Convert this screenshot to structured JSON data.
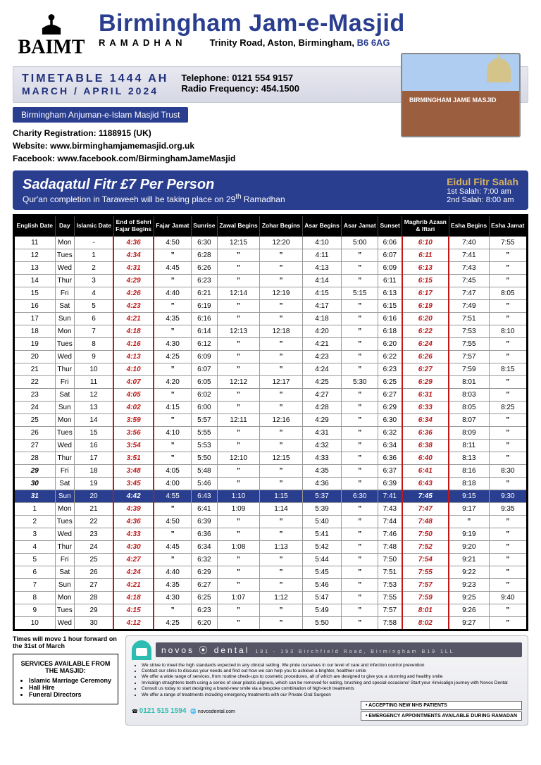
{
  "header": {
    "logo_text": "BAIMT",
    "title": "Birmingham Jam-e-Masjid",
    "subtitle": "RAMADHAN",
    "address_prefix": "Trinity Road, Aston, Birmingham, ",
    "postcode": "B6 6AG"
  },
  "info_bar": {
    "timetable": "TIMETABLE 1444 AH",
    "period": "MARCH / APRIL 2024",
    "tel_label": "Telephone: ",
    "tel": "0121 554 9157",
    "radio_label": "Radio Frequency: ",
    "radio": "454.1500",
    "photo_caption": "BIRMINGHAM JAME MASJID"
  },
  "trust": "Birmingham Anjuman-e-Islam Masjid Trust",
  "meta": {
    "charity": "Charity Registration: 1188915 (UK)",
    "website": "Website: www.birminghamjamemasjid.org.uk",
    "facebook": "Facebook: www.facebook.com/BirminghamJameMasjid"
  },
  "fitr": {
    "title": "Sadaqatul Fitr £7 Per Person",
    "note_a": "Qur'an completion in Taraweeh will be taking place on 29",
    "note_sup": "th",
    "note_b": " Ramadhan",
    "eid_label": "Eidul Fitr Salah",
    "eid1": "1st Salah: 7:00 am",
    "eid2": "2nd Salah: 8:00 am"
  },
  "columns": [
    "English Date",
    "Day",
    "Islamic Date",
    "End of Sehri / Fajar Begins",
    "Fajar Jamat",
    "Sunrise",
    "Zawal Begins",
    "Zohar Begins",
    "Asar Begins",
    "Asar Jamat",
    "Sunset",
    "Maghrib Azaan & Iftari",
    "Esha Begins",
    "Esha Jamat"
  ],
  "ditto": "”",
  "rows": [
    {
      "e": "11",
      "d": "Mon",
      "i": "-",
      "sehri": "4:36",
      "fj": "4:50",
      "sr": "6:30",
      "zw": "12:15",
      "zo": "12:20",
      "ab": "4:10",
      "aj": "5:00",
      "ss": "6:06",
      "mg": "6:10",
      "eb": "7:40",
      "ej": "7:55"
    },
    {
      "e": "12",
      "d": "Tues",
      "i": "1",
      "sehri": "4:34",
      "fj": "”",
      "sr": "6:28",
      "zw": "”",
      "zo": "”",
      "ab": "4:11",
      "aj": "”",
      "ss": "6:07",
      "mg": "6:11",
      "eb": "7:41",
      "ej": "”"
    },
    {
      "e": "13",
      "d": "Wed",
      "i": "2",
      "sehri": "4:31",
      "fj": "4:45",
      "sr": "6:26",
      "zw": "”",
      "zo": "”",
      "ab": "4:13",
      "aj": "”",
      "ss": "6:09",
      "mg": "6:13",
      "eb": "7:43",
      "ej": "”"
    },
    {
      "e": "14",
      "d": "Thur",
      "i": "3",
      "sehri": "4:29",
      "fj": "”",
      "sr": "6:23",
      "zw": "”",
      "zo": "”",
      "ab": "4:14",
      "aj": "”",
      "ss": "6:11",
      "mg": "6:15",
      "eb": "7:45",
      "ej": "”"
    },
    {
      "e": "15",
      "d": "Fri",
      "i": "4",
      "sehri": "4:26",
      "fj": "4:40",
      "sr": "6:21",
      "zw": "12:14",
      "zo": "12:19",
      "ab": "4:15",
      "aj": "5:15",
      "ss": "6:13",
      "mg": "6:17",
      "eb": "7:47",
      "ej": "8:05"
    },
    {
      "e": "16",
      "d": "Sat",
      "i": "5",
      "sehri": "4:23",
      "fj": "”",
      "sr": "6:19",
      "zw": "”",
      "zo": "”",
      "ab": "4:17",
      "aj": "”",
      "ss": "6:15",
      "mg": "6:19",
      "eb": "7:49",
      "ej": "”"
    },
    {
      "e": "17",
      "d": "Sun",
      "i": "6",
      "sehri": "4:21",
      "fj": "4:35",
      "sr": "6:16",
      "zw": "”",
      "zo": "”",
      "ab": "4:18",
      "aj": "”",
      "ss": "6:16",
      "mg": "6:20",
      "eb": "7:51",
      "ej": "”"
    },
    {
      "e": "18",
      "d": "Mon",
      "i": "7",
      "sehri": "4:18",
      "fj": "”",
      "sr": "6:14",
      "zw": "12:13",
      "zo": "12:18",
      "ab": "4:20",
      "aj": "”",
      "ss": "6:18",
      "mg": "6:22",
      "eb": "7:53",
      "ej": "8:10"
    },
    {
      "e": "19",
      "d": "Tues",
      "i": "8",
      "sehri": "4:16",
      "fj": "4:30",
      "sr": "6:12",
      "zw": "”",
      "zo": "”",
      "ab": "4:21",
      "aj": "”",
      "ss": "6:20",
      "mg": "6:24",
      "eb": "7:55",
      "ej": "”"
    },
    {
      "e": "20",
      "d": "Wed",
      "i": "9",
      "sehri": "4:13",
      "fj": "4:25",
      "sr": "6:09",
      "zw": "”",
      "zo": "”",
      "ab": "4:23",
      "aj": "”",
      "ss": "6:22",
      "mg": "6:26",
      "eb": "7:57",
      "ej": "”"
    },
    {
      "e": "21",
      "d": "Thur",
      "i": "10",
      "sehri": "4:10",
      "fj": "”",
      "sr": "6:07",
      "zw": "”",
      "zo": "”",
      "ab": "4:24",
      "aj": "”",
      "ss": "6:23",
      "mg": "6:27",
      "eb": "7:59",
      "ej": "8:15"
    },
    {
      "e": "22",
      "d": "Fri",
      "i": "11",
      "sehri": "4:07",
      "fj": "4:20",
      "sr": "6:05",
      "zw": "12:12",
      "zo": "12:17",
      "ab": "4:25",
      "aj": "5:30",
      "ss": "6:25",
      "mg": "6:29",
      "eb": "8:01",
      "ej": "”"
    },
    {
      "e": "23",
      "d": "Sat",
      "i": "12",
      "sehri": "4:05",
      "fj": "”",
      "sr": "6:02",
      "zw": "”",
      "zo": "”",
      "ab": "4:27",
      "aj": "”",
      "ss": "6:27",
      "mg": "6:31",
      "eb": "8:03",
      "ej": "”"
    },
    {
      "e": "24",
      "d": "Sun",
      "i": "13",
      "sehri": "4:02",
      "fj": "4:15",
      "sr": "6:00",
      "zw": "”",
      "zo": "”",
      "ab": "4:28",
      "aj": "”",
      "ss": "6:29",
      "mg": "6:33",
      "eb": "8:05",
      "ej": "8:25"
    },
    {
      "e": "25",
      "d": "Mon",
      "i": "14",
      "sehri": "3:59",
      "fj": "”",
      "sr": "5:57",
      "zw": "12:11",
      "zo": "12:16",
      "ab": "4:29",
      "aj": "”",
      "ss": "6:30",
      "mg": "6:34",
      "eb": "8:07",
      "ej": "”"
    },
    {
      "e": "26",
      "d": "Tues",
      "i": "15",
      "sehri": "3:56",
      "fj": "4:10",
      "sr": "5:55",
      "zw": "”",
      "zo": "”",
      "ab": "4:31",
      "aj": "”",
      "ss": "6:32",
      "mg": "6:36",
      "eb": "8:09",
      "ej": "”"
    },
    {
      "e": "27",
      "d": "Wed",
      "i": "16",
      "sehri": "3:54",
      "fj": "”",
      "sr": "5:53",
      "zw": "”",
      "zo": "”",
      "ab": "4:32",
      "aj": "”",
      "ss": "6:34",
      "mg": "6:38",
      "eb": "8:11",
      "ej": "”"
    },
    {
      "e": "28",
      "d": "Thur",
      "i": "17",
      "sehri": "3:51",
      "fj": "”",
      "sr": "5:50",
      "zw": "12:10",
      "zo": "12:15",
      "ab": "4:33",
      "aj": "”",
      "ss": "6:36",
      "mg": "6:40",
      "eb": "8:13",
      "ej": "”"
    },
    {
      "e": "29",
      "d": "Fri",
      "i": "18",
      "sehri": "3:48",
      "fj": "4:05",
      "sr": "5:48",
      "zw": "”",
      "zo": "”",
      "ab": "4:35",
      "aj": "”",
      "ss": "6:37",
      "mg": "6:41",
      "eb": "8:16",
      "ej": "8:30"
    },
    {
      "e": "30",
      "d": "Sat",
      "i": "19",
      "sehri": "3:45",
      "fj": "4:00",
      "sr": "5:46",
      "zw": "”",
      "zo": "”",
      "ab": "4:36",
      "aj": "”",
      "ss": "6:39",
      "mg": "6:43",
      "eb": "8:18",
      "ej": "”"
    },
    {
      "e": "31",
      "d": "Sun",
      "i": "20",
      "sehri": "4:42",
      "fj": "4:55",
      "sr": "6:43",
      "zw": "1:10",
      "zo": "1:15",
      "ab": "5:37",
      "aj": "6:30",
      "ss": "7:41",
      "mg": "7:45",
      "eb": "9:15",
      "ej": "9:30",
      "hl": true
    },
    {
      "e": "1",
      "d": "Mon",
      "i": "21",
      "sehri": "4:39",
      "fj": "”",
      "sr": "6:41",
      "zw": "1:09",
      "zo": "1:14",
      "ab": "5:39",
      "aj": "”",
      "ss": "7:43",
      "mg": "7:47",
      "eb": "9:17",
      "ej": "9:35"
    },
    {
      "e": "2",
      "d": "Tues",
      "i": "22",
      "sehri": "4:36",
      "fj": "4:50",
      "sr": "6:39",
      "zw": "”",
      "zo": "”",
      "ab": "5:40",
      "aj": "”",
      "ss": "7:44",
      "mg": "7:48",
      "eb": "”",
      "ej": "”"
    },
    {
      "e": "3",
      "d": "Wed",
      "i": "23",
      "sehri": "4:33",
      "fj": "”",
      "sr": "6:36",
      "zw": "”",
      "zo": "”",
      "ab": "5:41",
      "aj": "”",
      "ss": "7:46",
      "mg": "7:50",
      "eb": "9:19",
      "ej": "”"
    },
    {
      "e": "4",
      "d": "Thur",
      "i": "24",
      "sehri": "4:30",
      "fj": "4:45",
      "sr": "6:34",
      "zw": "1:08",
      "zo": "1:13",
      "ab": "5:42",
      "aj": "”",
      "ss": "7:48",
      "mg": "7:52",
      "eb": "9:20",
      "ej": "”"
    },
    {
      "e": "5",
      "d": "Fri",
      "i": "25",
      "sehri": "4:27",
      "fj": "”",
      "sr": "6:32",
      "zw": "”",
      "zo": "”",
      "ab": "5:44",
      "aj": "”",
      "ss": "7:50",
      "mg": "7:54",
      "eb": "9:21",
      "ej": "”"
    },
    {
      "e": "6",
      "d": "Sat",
      "i": "26",
      "sehri": "4:24",
      "fj": "4:40",
      "sr": "6:29",
      "zw": "”",
      "zo": "”",
      "ab": "5:45",
      "aj": "”",
      "ss": "7:51",
      "mg": "7:55",
      "eb": "9:22",
      "ej": "”"
    },
    {
      "e": "7",
      "d": "Sun",
      "i": "27",
      "sehri": "4:21",
      "fj": "4:35",
      "sr": "6:27",
      "zw": "”",
      "zo": "”",
      "ab": "5:46",
      "aj": "”",
      "ss": "7:53",
      "mg": "7:57",
      "eb": "9:23",
      "ej": "”"
    },
    {
      "e": "8",
      "d": "Mon",
      "i": "28",
      "sehri": "4:18",
      "fj": "4:30",
      "sr": "6:25",
      "zw": "1:07",
      "zo": "1:12",
      "ab": "5:47",
      "aj": "”",
      "ss": "7:55",
      "mg": "7:59",
      "eb": "9:25",
      "ej": "9:40"
    },
    {
      "e": "9",
      "d": "Tues",
      "i": "29",
      "sehri": "4:15",
      "fj": "”",
      "sr": "6:23",
      "zw": "”",
      "zo": "”",
      "ab": "5:49",
      "aj": "”",
      "ss": "7:57",
      "mg": "8:01",
      "eb": "9:26",
      "ej": "”"
    },
    {
      "e": "10",
      "d": "Wed",
      "i": "30",
      "sehri": "4:12",
      "fj": "4:25",
      "sr": "6:20",
      "zw": "”",
      "zo": "”",
      "ab": "5:50",
      "aj": "”",
      "ss": "7:58",
      "mg": "8:02",
      "eb": "9:27",
      "ej": "”"
    }
  ],
  "dst_note": "Times will move 1 hour forward on the 31st of March",
  "services": {
    "heading": "SERVICES AVAILABLE FROM THE MASJID:",
    "items": [
      "Islamic Marriage Ceremony",
      "Hall Hire",
      "Funeral Directors"
    ]
  },
  "ad": {
    "brand": "novos ⦿ dental",
    "address": "191 - 193 Birchfield Road, Birmingham B19 1LL",
    "bullets": [
      "We strive to meet the high standards expected in any clinical setting. We pride ourselves in our level of care and infection control prevention",
      "Contact our clinic to discuss your needs and find out how we can help you to achieve a brighter, healthier smile",
      "We offer a wide range of services, from routine check-ups to cosmetic procedures, all of which are designed to give you a stunning and healthy smile",
      "Invisalign straightens teeth using a series of clear plastic aligners, which can be removed for eating, brushing and special occasions! Start your #invisalign journey with Novos Dental",
      "Consult us today to start designing a brand-new smile via a bespoke combination of high-tech treatments",
      "We offer a range of treatments including emergency treatments with our Private Oral Surgeon"
    ],
    "phone": "0121 515 1594",
    "web": "novosdental.com",
    "box1": "ACCEPTING NEW NHS PATIENTS",
    "box2": "EMERGENCY APPOINTMENTS AVAILABLE DURING RAMADAN"
  },
  "colors": {
    "primary": "#2a3e8f",
    "red": "#c01818",
    "gold": "#d8b35c",
    "teal": "#2dbdb0"
  }
}
